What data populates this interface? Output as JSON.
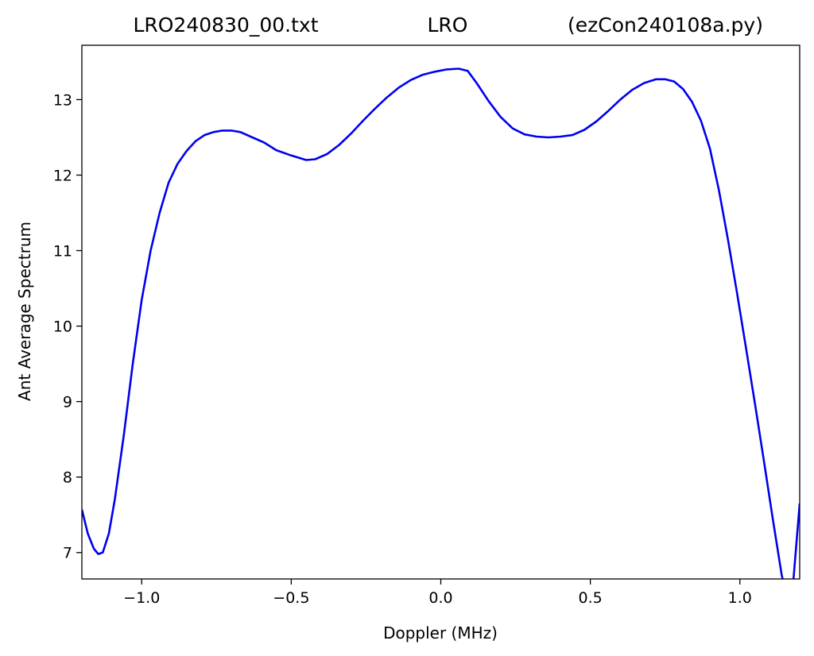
{
  "chart_data": {
    "type": "line",
    "title_left": "LRO240830_00.txt",
    "title_center": "LRO",
    "title_right": "(ezCon240108a.py)",
    "xlabel": "Doppler (MHz)",
    "ylabel": "Ant Average Spectrum",
    "xlim": [
      -1.2,
      1.2
    ],
    "ylim": [
      6.65,
      13.72
    ],
    "x_ticks": [
      -1.0,
      -0.5,
      0.0,
      0.5,
      1.0
    ],
    "x_tick_labels": [
      "−1.0",
      "−0.5",
      "0.0",
      "0.5",
      "1.0"
    ],
    "y_ticks": [
      7,
      8,
      9,
      10,
      11,
      12,
      13
    ],
    "y_tick_labels": [
      "7",
      "8",
      "9",
      "10",
      "11",
      "12",
      "13"
    ],
    "grid": false,
    "series": [
      {
        "color": "#0000ee",
        "x": [
          -1.2,
          -1.18,
          -1.16,
          -1.145,
          -1.13,
          -1.11,
          -1.09,
          -1.06,
          -1.03,
          -1.0,
          -0.97,
          -0.94,
          -0.91,
          -0.88,
          -0.85,
          -0.82,
          -0.79,
          -0.76,
          -0.73,
          -0.7,
          -0.67,
          -0.63,
          -0.59,
          -0.55,
          -0.5,
          -0.45,
          -0.42,
          -0.38,
          -0.34,
          -0.3,
          -0.26,
          -0.22,
          -0.18,
          -0.14,
          -0.1,
          -0.06,
          -0.02,
          0.02,
          0.06,
          0.09,
          0.12,
          0.16,
          0.2,
          0.24,
          0.28,
          0.32,
          0.36,
          0.4,
          0.44,
          0.48,
          0.52,
          0.56,
          0.6,
          0.64,
          0.68,
          0.72,
          0.75,
          0.78,
          0.81,
          0.84,
          0.87,
          0.9,
          0.93,
          0.96,
          0.99,
          1.02,
          1.05,
          1.08,
          1.11,
          1.14,
          1.17,
          1.2
        ],
        "y": [
          7.57,
          7.25,
          7.05,
          6.98,
          7.0,
          7.25,
          7.7,
          8.55,
          9.5,
          10.35,
          11.0,
          11.5,
          11.9,
          12.15,
          12.32,
          12.45,
          12.53,
          12.57,
          12.59,
          12.59,
          12.57,
          12.5,
          12.43,
          12.33,
          12.26,
          12.2,
          12.21,
          12.28,
          12.4,
          12.55,
          12.72,
          12.88,
          13.03,
          13.16,
          13.26,
          13.33,
          13.37,
          13.4,
          13.41,
          13.38,
          13.22,
          12.98,
          12.77,
          12.62,
          12.54,
          12.51,
          12.5,
          12.51,
          12.53,
          12.6,
          12.71,
          12.85,
          13.0,
          13.13,
          13.22,
          13.27,
          13.27,
          13.24,
          13.14,
          12.97,
          12.72,
          12.35,
          11.8,
          11.15,
          10.45,
          9.72,
          8.98,
          8.22,
          7.45,
          6.7,
          6.2,
          7.65
        ]
      }
    ]
  }
}
